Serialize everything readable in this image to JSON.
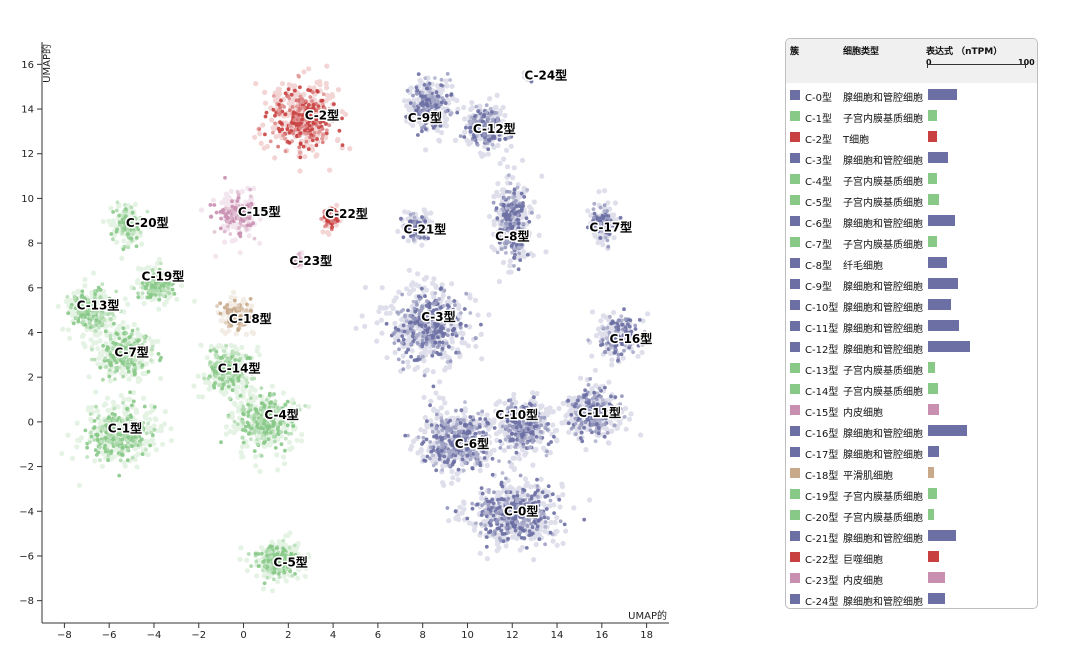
{
  "chart_data": {
    "type": "scatter",
    "title": "",
    "xlabel": "UMAP的",
    "ylabel": "UMAP的",
    "xlim": [
      -9,
      19
    ],
    "ylim": [
      -9,
      17
    ],
    "x_ticks": [
      -8,
      -6,
      -4,
      -2,
      0,
      2,
      4,
      6,
      8,
      10,
      12,
      14,
      16,
      18
    ],
    "y_ticks": [
      -8,
      -6,
      -4,
      -2,
      0,
      2,
      4,
      6,
      8,
      10,
      12,
      14,
      16
    ],
    "grid": false,
    "legend_position": "right",
    "legend_headers": {
      "cluster": "簇",
      "cell_type": "细胞类型",
      "expression": "表达式 （nTPM）"
    },
    "expression_scale": {
      "min": 0,
      "max": 100
    },
    "clusters": [
      {
        "name": "C-0型",
        "cell_type": "腺细胞和管腔细胞",
        "expression": 30,
        "color": "#6b6fa3",
        "x": 12.4,
        "y": -4.0
      },
      {
        "name": "C-1型",
        "cell_type": "子宫内膜基质细胞",
        "expression": 9,
        "color": "#88c988",
        "x": -5.3,
        "y": -0.3
      },
      {
        "name": "C-2型",
        "cell_type": "T细胞",
        "expression": 9,
        "color": "#c94040",
        "x": 3.5,
        "y": 13.7
      },
      {
        "name": "C-3型",
        "cell_type": "腺细胞和管腔细胞",
        "expression": 20,
        "color": "#6b6fa3",
        "x": 8.7,
        "y": 4.7
      },
      {
        "name": "C-4型",
        "cell_type": "子宫内膜基质细胞",
        "expression": 9,
        "color": "#88c988",
        "x": 1.7,
        "y": 0.3
      },
      {
        "name": "C-5型",
        "cell_type": "子宫内膜基质细胞",
        "expression": 11,
        "color": "#88c988",
        "x": 2.1,
        "y": -6.3
      },
      {
        "name": "C-6型",
        "cell_type": "腺细胞和管腔细胞",
        "expression": 28,
        "color": "#6b6fa3",
        "x": 10.2,
        "y": -1.0
      },
      {
        "name": "C-7型",
        "cell_type": "子宫内膜基质细胞",
        "expression": 9,
        "color": "#88c988",
        "x": -5.0,
        "y": 3.1
      },
      {
        "name": "C-8型",
        "cell_type": "纤毛细胞",
        "expression": 19,
        "color": "#6b6fa3",
        "x": 12.0,
        "y": 8.3
      },
      {
        "name": "C-9型",
        "cell_type": "腺细胞和管腔细胞",
        "expression": 31,
        "color": "#6b6fa3",
        "x": 8.1,
        "y": 13.6
      },
      {
        "name": "C-10型",
        "cell_type": "腺细胞和管腔细胞",
        "expression": 23,
        "color": "#6b6fa3",
        "x": 12.2,
        "y": 0.3
      },
      {
        "name": "C-11型",
        "cell_type": "腺细胞和管腔细胞",
        "expression": 32,
        "color": "#6b6fa3",
        "x": 15.9,
        "y": 0.4
      },
      {
        "name": "C-12型",
        "cell_type": "腺细胞和管腔细胞",
        "expression": 43,
        "color": "#6b6fa3",
        "x": 11.2,
        "y": 13.1
      },
      {
        "name": "C-13型",
        "cell_type": "子宫内膜基质细胞",
        "expression": 7,
        "color": "#88c988",
        "x": -6.5,
        "y": 5.2
      },
      {
        "name": "C-14型",
        "cell_type": "子宫内膜基质细胞",
        "expression": 10,
        "color": "#88c988",
        "x": -0.2,
        "y": 2.4
      },
      {
        "name": "C-15型",
        "cell_type": "内皮细胞",
        "expression": 11,
        "color": "#c98fb0",
        "x": 0.7,
        "y": 9.4
      },
      {
        "name": "C-16型",
        "cell_type": "腺细胞和管腔细胞",
        "expression": 40,
        "color": "#6b6fa3",
        "x": 17.3,
        "y": 3.7
      },
      {
        "name": "C-17型",
        "cell_type": "腺细胞和管腔细胞",
        "expression": 11,
        "color": "#6b6fa3",
        "x": 16.4,
        "y": 8.7
      },
      {
        "name": "C-18型",
        "cell_type": "平滑肌细胞",
        "expression": 6,
        "color": "#c8a98a",
        "x": 0.3,
        "y": 4.6
      },
      {
        "name": "C-19型",
        "cell_type": "子宫内膜基质细胞",
        "expression": 9,
        "color": "#88c988",
        "x": -3.6,
        "y": 6.5
      },
      {
        "name": "C-20型",
        "cell_type": "子宫内膜基质细胞",
        "expression": 6,
        "color": "#88c988",
        "x": -4.3,
        "y": 8.9
      },
      {
        "name": "C-21型",
        "cell_type": "腺细胞和管腔细胞",
        "expression": 29,
        "color": "#6b6fa3",
        "x": 8.1,
        "y": 8.6
      },
      {
        "name": "C-22型",
        "cell_type": "巨噬细胞",
        "expression": 11,
        "color": "#c94040",
        "x": 4.6,
        "y": 9.3
      },
      {
        "name": "C-23型",
        "cell_type": "内皮细胞",
        "expression": 17,
        "color": "#c98fb0",
        "x": 3.0,
        "y": 7.2
      },
      {
        "name": "C-24型",
        "cell_type": "腺细胞和管腔细胞",
        "expression": 17,
        "color": "#6b6fa3",
        "x": 13.5,
        "y": 15.5
      }
    ]
  }
}
